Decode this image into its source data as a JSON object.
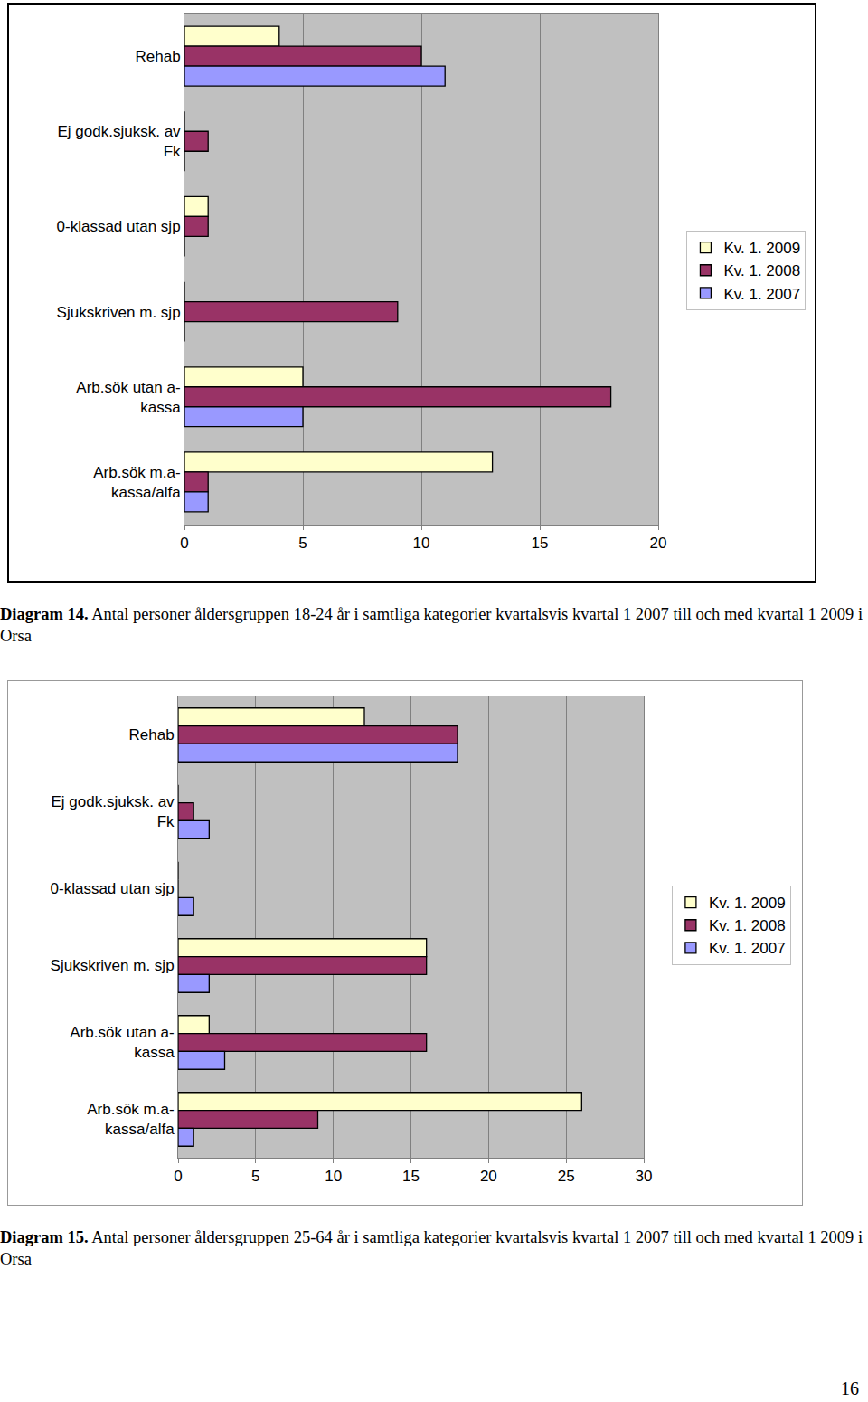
{
  "chart_data": [
    {
      "type": "bar",
      "orientation": "horizontal",
      "grid": true,
      "legend": "right",
      "categories": [
        "Rehab",
        "Ej godk.sjuksk. av\nFk",
        "0-klassad utan sjp",
        "Sjukskriven m. sjp",
        "Arb.sök utan a-\nkassa",
        "Arb.sök m.a-\nkassa/alfa"
      ],
      "series": [
        {
          "name": "Kv. 1. 2009",
          "color": "#ffffcc",
          "values": [
            4,
            0,
            1,
            0,
            5,
            13
          ]
        },
        {
          "name": "Kv. 1. 2008",
          "color": "#993366",
          "values": [
            10,
            1,
            1,
            9,
            18,
            1
          ]
        },
        {
          "name": "Kv. 1. 2007",
          "color": "#9999ff",
          "values": [
            11,
            0,
            0,
            0,
            5,
            1
          ]
        }
      ],
      "xlim": [
        0,
        20
      ],
      "xticks": [
        0,
        5,
        10,
        15,
        20
      ],
      "caption": {
        "label": "Diagram 14.",
        "text": "Antal personer åldersgruppen 18-24 år i samtliga kategorier kvartalsvis kvartal 1 2007 till och med kvartal 1 2009 i Orsa"
      }
    },
    {
      "type": "bar",
      "orientation": "horizontal",
      "grid": true,
      "legend": "right",
      "categories": [
        "Rehab",
        "Ej godk.sjuksk. av\nFk",
        "0-klassad utan sjp",
        "Sjukskriven m. sjp",
        "Arb.sök utan a-\nkassa",
        "Arb.sök m.a-\nkassa/alfa"
      ],
      "series": [
        {
          "name": "Kv. 1. 2009",
          "color": "#ffffcc",
          "values": [
            12,
            0,
            0,
            16,
            2,
            26
          ]
        },
        {
          "name": "Kv. 1. 2008",
          "color": "#993366",
          "values": [
            18,
            1,
            0,
            16,
            16,
            9
          ]
        },
        {
          "name": "Kv. 1. 2007",
          "color": "#9999ff",
          "values": [
            18,
            2,
            1,
            2,
            3,
            1
          ]
        }
      ],
      "xlim": [
        0,
        30
      ],
      "xticks": [
        0,
        5,
        10,
        15,
        20,
        25,
        30
      ],
      "caption": {
        "label": "Diagram 15.",
        "text": "Antal personer åldersgruppen 25-64 år i samtliga kategorier kvartalsvis kvartal 1 2007 till och med kvartal 1 2009 i Orsa"
      }
    }
  ],
  "page_number": 16
}
